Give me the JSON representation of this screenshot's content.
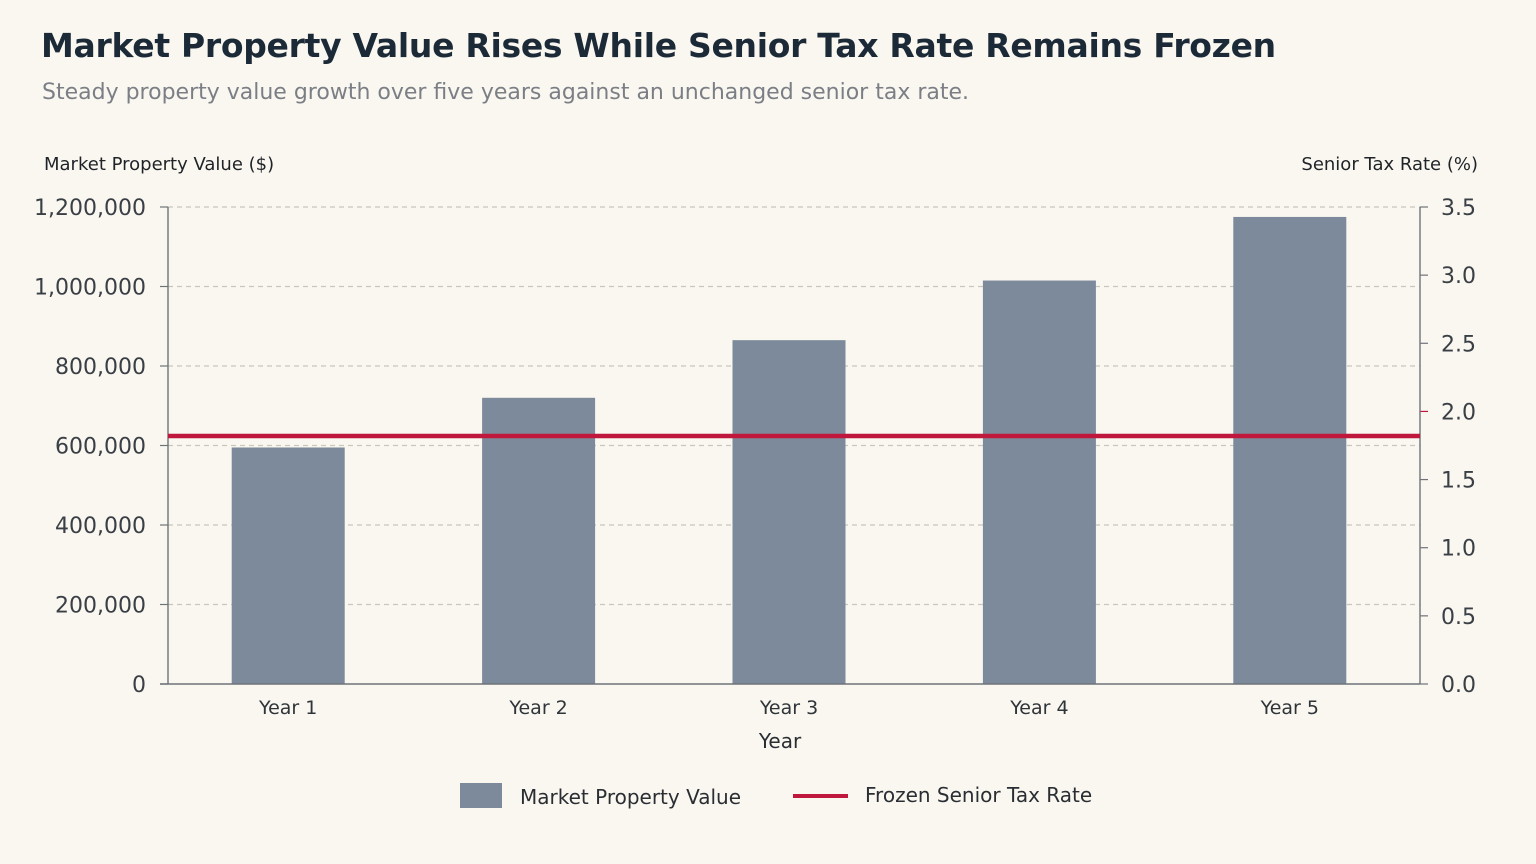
{
  "title": "Market Property Value Rises While Senior Tax Rate Remains Frozen",
  "subtitle": "Steady property value growth over five years against an unchanged senior tax rate.",
  "colors": {
    "bar": "#7d8a9b",
    "line": "#c0183c",
    "grid": "#c9c6bd",
    "axis": "#6f7378"
  },
  "chart_data": {
    "type": "bar",
    "categories": [
      "Year 1",
      "Year 2",
      "Year 3",
      "Year 4",
      "Year 5"
    ],
    "series": [
      {
        "name": "Market Property Value",
        "type": "bar",
        "axis": "left",
        "values": [
          595000,
          720000,
          865000,
          1015000,
          1175000
        ]
      },
      {
        "name": "Frozen Senior Tax Rate",
        "type": "line",
        "axis": "right",
        "values": [
          1.82,
          1.82,
          1.82,
          1.82,
          1.82
        ]
      }
    ],
    "xlabel": "Year",
    "ylabel": "Market Property Value ($)",
    "y2label": "Senior Tax Rate (%)",
    "ylim": [
      0,
      1200000
    ],
    "y2lim": [
      0,
      3.5
    ],
    "yticks": [
      "0",
      "200,000",
      "400,000",
      "600,000",
      "800,000",
      "1,000,000",
      "1,200,000"
    ],
    "yticks_values": [
      0,
      200000,
      400000,
      600000,
      800000,
      1000000,
      1200000
    ],
    "y2ticks": [
      "0.0",
      "0.5",
      "1.0",
      "1.5",
      "2.0",
      "2.5",
      "3.0",
      "3.5"
    ],
    "y2ticks_values": [
      0,
      0.5,
      1.0,
      1.5,
      2.0,
      2.5,
      3.0,
      3.5
    ],
    "y2_highlight_tick": "2.0",
    "grid": true,
    "legend": "bottom-center"
  }
}
